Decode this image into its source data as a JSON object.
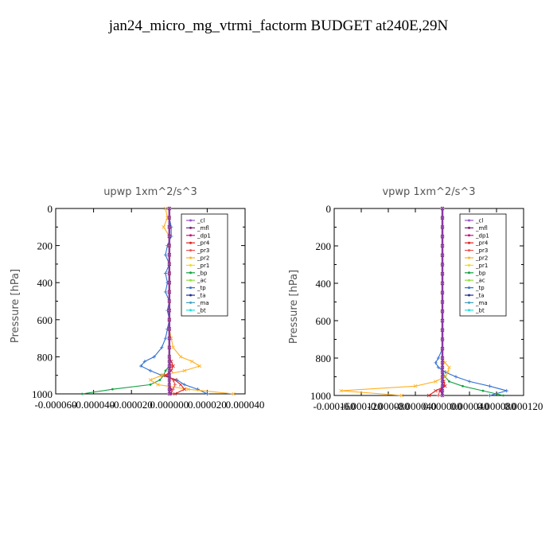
{
  "page_title": "jan24_micro_mg_vtrmi_factorm  BUDGET at240E,29N",
  "chart_data": [
    {
      "type": "line",
      "title": "upwp   1xm^2/s^3",
      "ylabel": "Pressure [hPa]",
      "xlim": [
        -6e-05,
        4e-05
      ],
      "ylim": [
        1000,
        0
      ],
      "x_tick_labels": [
        "-0.000060",
        "-0.000040",
        "-0.000020",
        "0.000000",
        "0.000020",
        "0.000040"
      ],
      "y_tick_labels": [
        "0",
        "200",
        "400",
        "600",
        "800",
        "1000"
      ],
      "y": [
        0,
        50,
        100,
        150,
        200,
        250,
        300,
        350,
        400,
        450,
        500,
        550,
        600,
        650,
        700,
        750,
        800,
        825,
        850,
        875,
        900,
        925,
        950,
        975,
        1000
      ],
      "series": [
        {
          "name": "_cl",
          "color": "#9955cc",
          "values": [
            0,
            0,
            0,
            0,
            0,
            0,
            0,
            0,
            0,
            0,
            0,
            0,
            0,
            0,
            0,
            0,
            0,
            0,
            0,
            0,
            0,
            0,
            0,
            0,
            0
          ]
        },
        {
          "name": "_mfl",
          "color": "#7a1e78",
          "values": [
            0,
            0,
            0,
            0,
            0,
            0,
            0,
            0,
            0,
            0,
            0,
            0,
            0,
            0,
            0,
            0,
            0,
            0,
            0,
            0,
            0,
            0,
            0,
            0,
            0
          ]
        },
        {
          "name": "_dp1",
          "color": "#c8107a",
          "values": [
            0,
            0,
            0,
            0,
            0,
            0,
            0,
            0,
            0,
            0,
            0,
            0,
            0,
            0,
            0,
            0,
            0,
            0,
            0,
            0,
            0,
            0,
            0,
            1e-06,
            1e-06
          ]
        },
        {
          "name": "_pr4",
          "color": "#e02020",
          "values": [
            0,
            0,
            0,
            0,
            0,
            0,
            0,
            0,
            0,
            0,
            0,
            0,
            0,
            0,
            0,
            0,
            0,
            1e-06,
            2e-06,
            1e-06,
            -2e-06,
            3e-06,
            6e-06,
            8e-06,
            3e-06
          ]
        },
        {
          "name": "_pr3",
          "color": "#f05050",
          "values": [
            0,
            0,
            0,
            0,
            0,
            0,
            0,
            0,
            0,
            0,
            0,
            0,
            0,
            0,
            0,
            0,
            0,
            0,
            1e-06,
            0,
            -1e-06,
            2e-06,
            3e-06,
            2e-06,
            1e-06
          ]
        },
        {
          "name": "_pr2",
          "color": "#ffb020",
          "values": [
            -2e-06,
            -1e-06,
            -3e-06,
            0,
            0,
            0,
            0,
            0,
            0,
            0,
            0,
            0,
            0,
            0,
            1e-06,
            2e-06,
            6e-06,
            1.2e-05,
            1.6e-05,
            8e-06,
            -4e-06,
            -1e-05,
            -6e-06,
            1e-05,
            3.4e-05
          ]
        },
        {
          "name": "_pr1",
          "color": "#e8e020",
          "values": [
            0,
            0,
            0,
            0,
            0,
            0,
            0,
            0,
            0,
            0,
            0,
            0,
            0,
            0,
            0,
            0,
            0,
            0,
            0,
            0,
            0,
            0,
            0,
            0,
            0
          ]
        },
        {
          "name": "_bp",
          "color": "#10a040",
          "values": [
            0,
            0,
            0,
            0,
            0,
            0,
            0,
            0,
            0,
            0,
            0,
            0,
            0,
            0,
            0,
            0,
            0,
            0,
            0,
            -2e-06,
            -3e-06,
            -5e-06,
            -1e-05,
            -3e-05,
            -4.6e-05
          ]
        },
        {
          "name": "_ac",
          "color": "#90e040",
          "values": [
            0,
            0,
            0,
            0,
            0,
            0,
            0,
            0,
            0,
            0,
            0,
            0,
            0,
            0,
            0,
            0,
            0,
            0,
            0,
            0,
            0,
            0,
            0,
            0,
            0
          ]
        },
        {
          "name": "_tp",
          "color": "#3070d0",
          "values": [
            0,
            0,
            1e-06,
            1e-06,
            -1e-06,
            -2e-06,
            0,
            -2e-06,
            -1e-06,
            -2e-06,
            0,
            -1e-06,
            0,
            -1e-06,
            -2e-06,
            -4e-06,
            -8e-06,
            -1.3e-05,
            -1.5e-05,
            -1e-05,
            -4e-06,
            4e-06,
            8e-06,
            1.5e-05,
            2e-05
          ]
        },
        {
          "name": "_ta",
          "color": "#203090",
          "values": [
            0,
            0,
            0,
            0,
            0,
            0,
            0,
            0,
            0,
            0,
            0,
            0,
            0,
            0,
            0,
            0,
            0,
            0,
            0,
            0,
            0,
            0,
            0,
            0,
            0
          ]
        },
        {
          "name": "_ma",
          "color": "#40a0c0",
          "values": [
            0,
            0,
            0,
            0,
            0,
            0,
            0,
            0,
            0,
            0,
            0,
            0,
            0,
            0,
            0,
            0,
            0,
            0,
            0,
            0,
            0,
            0,
            0,
            0,
            0
          ]
        },
        {
          "name": "_bt",
          "color": "#20e0e0",
          "values": [
            0,
            0,
            0,
            0,
            0,
            0,
            0,
            0,
            0,
            0,
            0,
            0,
            0,
            0,
            0,
            0,
            0,
            0,
            0,
            0,
            0,
            0,
            0,
            0,
            0
          ]
        }
      ]
    },
    {
      "type": "line",
      "title": "vpwp   1xm^2/s^3",
      "ylabel": "Pressure [hPa]",
      "xlim": [
        -0.00016,
        0.00012
      ],
      "ylim": [
        1000,
        0
      ],
      "x_tick_labels": [
        "-0.000160",
        "-0.000120",
        "-0.000080",
        "-0.000040",
        "0.000000",
        "0.000040",
        "0.000080",
        "0.000120"
      ],
      "y_tick_labels": [
        "0",
        "200",
        "400",
        "600",
        "800",
        "1000"
      ],
      "y": [
        0,
        50,
        100,
        150,
        200,
        250,
        300,
        350,
        400,
        450,
        500,
        550,
        600,
        650,
        700,
        750,
        800,
        825,
        850,
        875,
        900,
        925,
        950,
        975,
        1000
      ],
      "series": [
        {
          "name": "_cl",
          "color": "#9955cc",
          "values": [
            0,
            0,
            0,
            0,
            0,
            0,
            0,
            0,
            0,
            0,
            0,
            0,
            0,
            0,
            0,
            0,
            0,
            0,
            0,
            0,
            0,
            0,
            0,
            0,
            0
          ]
        },
        {
          "name": "_mfl",
          "color": "#7a1e78",
          "values": [
            0,
            0,
            0,
            0,
            0,
            0,
            0,
            0,
            0,
            0,
            0,
            0,
            0,
            0,
            0,
            0,
            0,
            0,
            0,
            0,
            0,
            0,
            0,
            0,
            0
          ]
        },
        {
          "name": "_dp1",
          "color": "#c8107a",
          "values": [
            0,
            0,
            0,
            0,
            0,
            0,
            0,
            0,
            0,
            0,
            0,
            0,
            0,
            0,
            0,
            0,
            0,
            0,
            0,
            0,
            0,
            0,
            0,
            -3e-06,
            0
          ]
        },
        {
          "name": "_pr4",
          "color": "#e02020",
          "values": [
            0,
            0,
            0,
            0,
            0,
            0,
            0,
            0,
            0,
            0,
            0,
            0,
            0,
            0,
            0,
            0,
            0,
            0,
            0,
            0,
            0,
            2e-06,
            4e-06,
            -1e-05,
            -2e-05
          ]
        },
        {
          "name": "_pr3",
          "color": "#f05050",
          "values": [
            0,
            0,
            0,
            0,
            0,
            0,
            0,
            0,
            0,
            0,
            0,
            0,
            0,
            0,
            0,
            0,
            0,
            0,
            0,
            0,
            0,
            0,
            2e-06,
            -4e-06,
            -6e-06
          ]
        },
        {
          "name": "_pr2",
          "color": "#ffb020",
          "values": [
            0,
            0,
            0,
            0,
            0,
            0,
            0,
            0,
            0,
            0,
            0,
            0,
            0,
            0,
            0,
            0,
            0,
            4e-06,
            1e-05,
            8e-06,
            4e-06,
            -1e-05,
            -4e-05,
            -0.00015,
            -6e-05
          ]
        },
        {
          "name": "_pr1",
          "color": "#e8e020",
          "values": [
            0,
            0,
            0,
            0,
            0,
            0,
            0,
            0,
            0,
            0,
            0,
            0,
            0,
            0,
            0,
            0,
            0,
            0,
            0,
            0,
            0,
            0,
            0,
            0,
            0
          ]
        },
        {
          "name": "_bp",
          "color": "#10a040",
          "values": [
            0,
            0,
            0,
            0,
            0,
            0,
            0,
            0,
            0,
            0,
            0,
            0,
            0,
            0,
            0,
            0,
            0,
            0,
            0,
            0,
            4e-06,
            1e-05,
            3e-05,
            6e-05,
            9e-05
          ]
        },
        {
          "name": "_ac",
          "color": "#90e040",
          "values": [
            0,
            0,
            0,
            0,
            0,
            0,
            0,
            0,
            0,
            0,
            0,
            0,
            0,
            0,
            0,
            0,
            0,
            0,
            0,
            0,
            0,
            0,
            0,
            0,
            0
          ]
        },
        {
          "name": "_tp",
          "color": "#3070d0",
          "values": [
            0,
            0,
            0,
            0,
            0,
            0,
            0,
            0,
            0,
            0,
            0,
            0,
            0,
            0,
            0,
            0,
            -6e-06,
            -1e-05,
            -6e-06,
            4e-06,
            2e-05,
            4e-05,
            7e-05,
            9.5e-05,
            7e-05
          ]
        },
        {
          "name": "_ta",
          "color": "#203090",
          "values": [
            0,
            0,
            0,
            0,
            0,
            0,
            0,
            0,
            0,
            0,
            0,
            0,
            0,
            0,
            0,
            0,
            0,
            0,
            0,
            0,
            0,
            0,
            0,
            0,
            0
          ]
        },
        {
          "name": "_ma",
          "color": "#40a0c0",
          "values": [
            0,
            0,
            0,
            0,
            0,
            0,
            0,
            0,
            0,
            0,
            0,
            0,
            0,
            0,
            0,
            0,
            0,
            0,
            0,
            0,
            0,
            0,
            0,
            0,
            0
          ]
        },
        {
          "name": "_bt",
          "color": "#20e0e0",
          "values": [
            0,
            0,
            0,
            0,
            0,
            0,
            0,
            0,
            0,
            0,
            0,
            0,
            0,
            0,
            0,
            0,
            0,
            0,
            0,
            0,
            0,
            0,
            0,
            0,
            0
          ]
        }
      ]
    }
  ]
}
